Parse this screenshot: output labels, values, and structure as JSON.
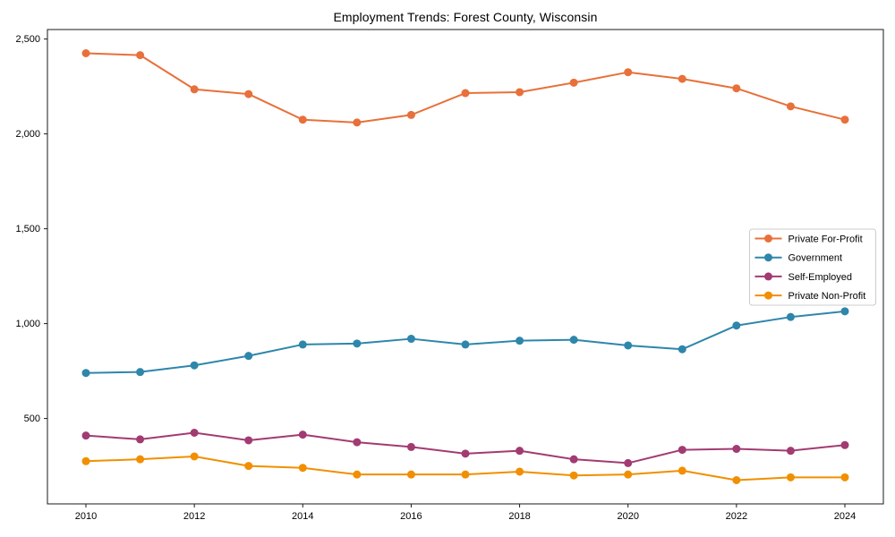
{
  "title": "Employment Trends: Forest County, Wisconsin",
  "chart_data": {
    "type": "line",
    "title": "Employment Trends: Forest County, Wisconsin",
    "xlabel": "",
    "ylabel": "",
    "x": [
      2010,
      2011,
      2012,
      2013,
      2014,
      2015,
      2016,
      2017,
      2018,
      2019,
      2020,
      2021,
      2022,
      2023,
      2024
    ],
    "series": [
      {
        "name": "Private For-Profit",
        "color": "#E8703A",
        "values": [
          2425,
          2415,
          2235,
          2210,
          2075,
          2060,
          2100,
          2215,
          2220,
          2270,
          2325,
          2290,
          2240,
          2145,
          2075
        ]
      },
      {
        "name": "Government",
        "color": "#2E86AB",
        "values": [
          740,
          745,
          780,
          830,
          890,
          895,
          920,
          890,
          910,
          915,
          885,
          865,
          990,
          1035,
          1065
        ]
      },
      {
        "name": "Self-Employed",
        "color": "#A23B72",
        "values": [
          410,
          390,
          425,
          385,
          415,
          375,
          350,
          315,
          330,
          285,
          265,
          335,
          340,
          330,
          360
        ]
      },
      {
        "name": "Private Non-Profit",
        "color": "#F18F01",
        "values": [
          275,
          285,
          300,
          250,
          240,
          205,
          205,
          205,
          220,
          200,
          205,
          225,
          175,
          190,
          190
        ]
      }
    ],
    "xticks": [
      2010,
      2012,
      2014,
      2016,
      2018,
      2020,
      2022,
      2024
    ],
    "yticks": [
      500,
      1000,
      1500,
      2000,
      2500
    ],
    "ytick_labels": [
      "500",
      "1,000",
      "1,500",
      "2,000",
      "2,500"
    ],
    "xlim": [
      2009.29,
      2024.71
    ],
    "ylim": [
      50,
      2550
    ],
    "grid": false,
    "legend": {
      "position": "center-right",
      "entries": [
        "Private For-Profit",
        "Government",
        "Self-Employed",
        "Private Non-Profit"
      ]
    },
    "axis_color": "#1a1a1a",
    "legend_border_color": "#cccccc"
  }
}
